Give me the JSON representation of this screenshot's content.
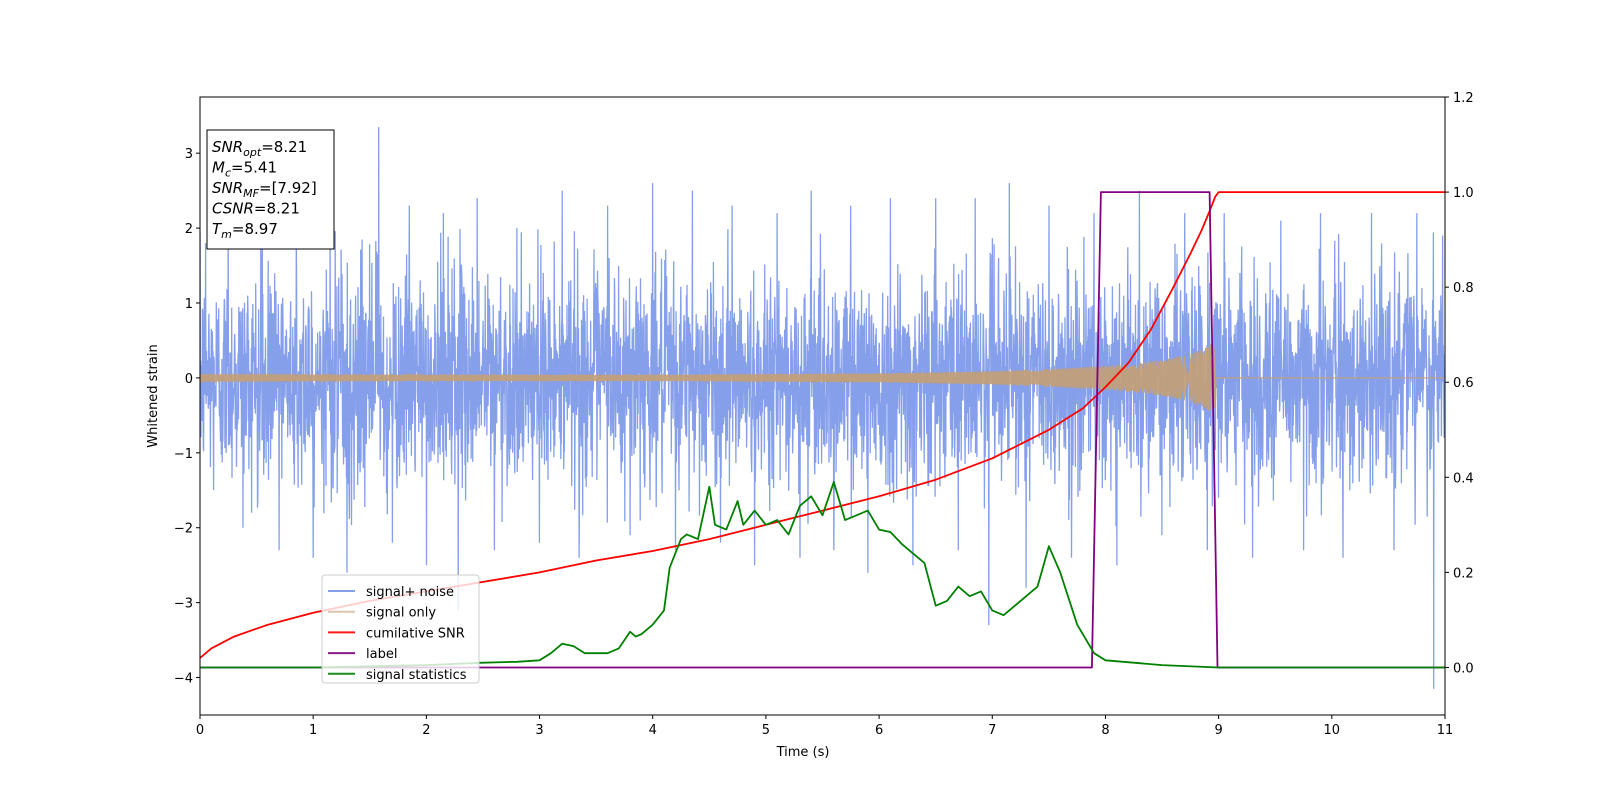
{
  "chart_data": {
    "type": "line",
    "title": "",
    "xlabel": "Time (s)",
    "ylabel": "Whitened strain",
    "y2label": "",
    "xlim": [
      0,
      11
    ],
    "ylim": [
      -4.5,
      3.75
    ],
    "y2lim": [
      -0.1,
      1.2
    ],
    "xticks": [
      "0",
      "1",
      "2",
      "3",
      "4",
      "5",
      "6",
      "7",
      "8",
      "9",
      "10",
      "11"
    ],
    "yticks": [
      "3",
      "2",
      "1",
      "0",
      "−1",
      "−2",
      "−3",
      "−4"
    ],
    "y2ticks": [
      "1.2",
      "1.0",
      "0.8",
      "0.6",
      "0.4",
      "0.2",
      "0.0"
    ],
    "grid": false,
    "legend_position": "lower-left",
    "info_box": {
      "lines": [
        {
          "base": "SNR",
          "sub": "opt",
          "value": "=8.21"
        },
        {
          "base": "M",
          "sub": "c",
          "value": "=5.41"
        },
        {
          "base": "SNR",
          "sub": "MF",
          "value": "=[7.92]"
        },
        {
          "base": "CSNR",
          "sub": "",
          "value": "=8.21"
        },
        {
          "base": "T",
          "sub": "m",
          "value": "=8.97"
        }
      ]
    },
    "series": [
      {
        "name": "signal+ noise",
        "axis": "left",
        "color": "#7895e8",
        "description_envelope_typical": 1.8,
        "spikes": [
          [
            0.05,
            1.8
          ],
          [
            0.12,
            -1.5
          ],
          [
            0.25,
            2.3
          ],
          [
            0.38,
            -2.0
          ],
          [
            0.55,
            2.0
          ],
          [
            0.7,
            -2.3
          ],
          [
            0.85,
            1.9
          ],
          [
            1.0,
            -2.4
          ],
          [
            1.15,
            2.1
          ],
          [
            1.3,
            -2.6
          ],
          [
            1.58,
            3.35
          ],
          [
            1.7,
            -2.2
          ],
          [
            1.85,
            2.3
          ],
          [
            2.0,
            -2.5
          ],
          [
            2.15,
            2.2
          ],
          [
            2.28,
            -3.1
          ],
          [
            2.45,
            2.4
          ],
          [
            2.6,
            -2.3
          ],
          [
            2.8,
            2.0
          ],
          [
            3.0,
            -2.2
          ],
          [
            3.2,
            2.5
          ],
          [
            3.35,
            -2.4
          ],
          [
            3.6,
            2.3
          ],
          [
            3.8,
            -2.1
          ],
          [
            4.0,
            2.6
          ],
          [
            4.2,
            -2.3
          ],
          [
            4.35,
            2.5
          ],
          [
            4.6,
            -2.2
          ],
          [
            4.7,
            2.3
          ],
          [
            4.9,
            -2.5
          ],
          [
            5.1,
            2.2
          ],
          [
            5.3,
            -2.4
          ],
          [
            5.4,
            2.5
          ],
          [
            5.6,
            -2.3
          ],
          [
            5.75,
            2.3
          ],
          [
            5.9,
            -2.6
          ],
          [
            6.1,
            2.4
          ],
          [
            6.3,
            -2.5
          ],
          [
            6.5,
            2.4
          ],
          [
            6.7,
            -2.3
          ],
          [
            6.85,
            2.4
          ],
          [
            6.97,
            -3.3
          ],
          [
            7.15,
            2.6
          ],
          [
            7.3,
            -2.8
          ],
          [
            7.5,
            2.3
          ],
          [
            7.7,
            -2.4
          ],
          [
            7.9,
            2.2
          ],
          [
            8.1,
            -2.5
          ],
          [
            8.3,
            2.5
          ],
          [
            8.5,
            -2.1
          ],
          [
            8.7,
            2.2
          ],
          [
            8.9,
            -2.3
          ],
          [
            9.05,
            2.2
          ],
          [
            9.3,
            -2.4
          ],
          [
            9.55,
            2.1
          ],
          [
            9.75,
            -2.3
          ],
          [
            9.9,
            2.2
          ],
          [
            10.1,
            -2.4
          ],
          [
            10.35,
            2.2
          ],
          [
            10.55,
            -2.3
          ],
          [
            10.75,
            2.2
          ],
          [
            10.9,
            -4.15
          ],
          [
            10.98,
            1.9
          ]
        ]
      },
      {
        "name": "signal only",
        "axis": "left",
        "color": "#c49f74",
        "envelope": [
          [
            0.0,
            0.05
          ],
          [
            2.0,
            0.04
          ],
          [
            4.0,
            0.04
          ],
          [
            6.0,
            0.06
          ],
          [
            7.0,
            0.09
          ],
          [
            7.5,
            0.12
          ],
          [
            8.0,
            0.16
          ],
          [
            8.3,
            0.2
          ],
          [
            8.5,
            0.24
          ],
          [
            8.7,
            0.3
          ],
          [
            8.85,
            0.38
          ],
          [
            8.95,
            0.47
          ],
          [
            8.97,
            0.5
          ],
          [
            8.98,
            0.0
          ],
          [
            11.0,
            0.0
          ]
        ]
      },
      {
        "name": "cumilative SNR",
        "axis": "right",
        "color": "#ff0000",
        "x": [
          0.0,
          0.1,
          0.3,
          0.6,
          1.0,
          1.5,
          2.0,
          2.5,
          3.0,
          3.5,
          4.0,
          4.5,
          5.0,
          5.5,
          6.0,
          6.5,
          7.0,
          7.5,
          7.8,
          8.0,
          8.2,
          8.4,
          8.6,
          8.75,
          8.85,
          8.92,
          8.97,
          9.0,
          11.0
        ],
        "values": [
          0.02,
          0.04,
          0.065,
          0.09,
          0.115,
          0.14,
          0.16,
          0.18,
          0.2,
          0.225,
          0.245,
          0.27,
          0.3,
          0.33,
          0.36,
          0.395,
          0.44,
          0.5,
          0.545,
          0.59,
          0.64,
          0.71,
          0.8,
          0.87,
          0.92,
          0.96,
          0.99,
          1.0,
          1.0
        ]
      },
      {
        "name": "label",
        "axis": "right",
        "color": "#800080",
        "x": [
          0.0,
          7.88,
          7.96,
          8.92,
          8.99,
          11.0
        ],
        "values": [
          0.0,
          0.0,
          1.0,
          1.0,
          0.0,
          0.0
        ]
      },
      {
        "name": "signal statistics",
        "axis": "right",
        "color": "#008000",
        "x": [
          0.0,
          1.0,
          2.0,
          2.5,
          2.8,
          3.0,
          3.1,
          3.2,
          3.3,
          3.4,
          3.6,
          3.7,
          3.8,
          3.85,
          3.9,
          4.0,
          4.1,
          4.15,
          4.25,
          4.3,
          4.4,
          4.5,
          4.55,
          4.65,
          4.75,
          4.8,
          4.9,
          5.0,
          5.1,
          5.2,
          5.3,
          5.4,
          5.5,
          5.6,
          5.7,
          5.8,
          5.9,
          6.0,
          6.1,
          6.2,
          6.3,
          6.4,
          6.5,
          6.6,
          6.7,
          6.8,
          6.9,
          7.0,
          7.1,
          7.2,
          7.3,
          7.4,
          7.5,
          7.6,
          7.75,
          7.9,
          8.0,
          8.5,
          9.0,
          11.0
        ],
        "values": [
          0.0,
          0.0,
          0.005,
          0.01,
          0.012,
          0.015,
          0.03,
          0.05,
          0.045,
          0.03,
          0.03,
          0.04,
          0.075,
          0.065,
          0.07,
          0.09,
          0.12,
          0.21,
          0.27,
          0.28,
          0.27,
          0.38,
          0.3,
          0.29,
          0.35,
          0.3,
          0.33,
          0.3,
          0.31,
          0.28,
          0.34,
          0.36,
          0.32,
          0.39,
          0.31,
          0.32,
          0.33,
          0.29,
          0.285,
          0.26,
          0.24,
          0.22,
          0.13,
          0.14,
          0.17,
          0.15,
          0.16,
          0.12,
          0.11,
          0.13,
          0.15,
          0.17,
          0.255,
          0.2,
          0.09,
          0.03,
          0.015,
          0.005,
          0.0,
          0.0
        ]
      }
    ]
  }
}
